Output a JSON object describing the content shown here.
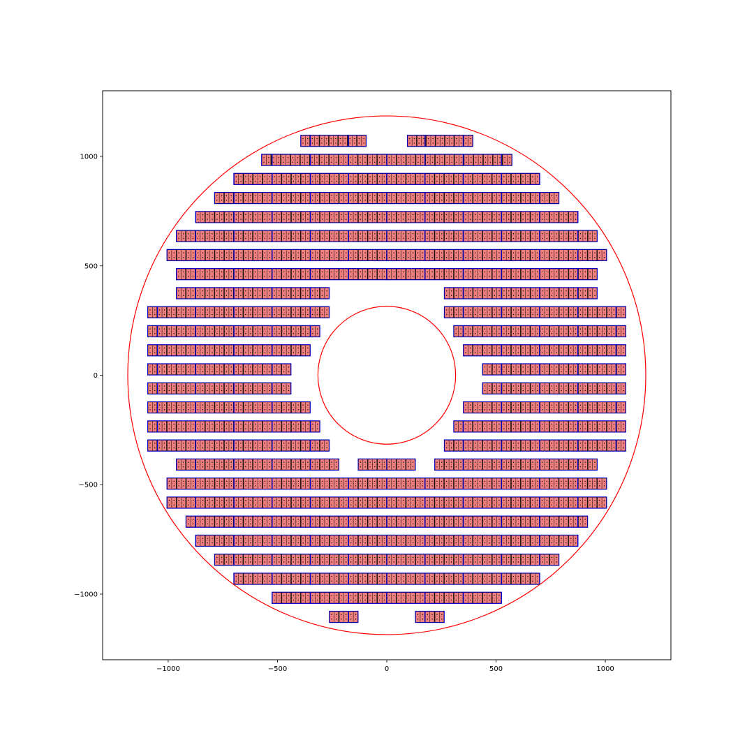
{
  "chart_data": {
    "type": "diagram",
    "title": "",
    "xlabel": "",
    "ylabel": "",
    "xlim": [
      -1300,
      1300
    ],
    "ylim": [
      -1300,
      1300
    ],
    "grid": false,
    "xticks": [
      {
        "value": -1000,
        "label": "−1000"
      },
      {
        "value": -500,
        "label": "−500"
      },
      {
        "value": 0,
        "label": "0"
      },
      {
        "value": 500,
        "label": "500"
      },
      {
        "value": 1000,
        "label": "1000"
      }
    ],
    "yticks": [
      {
        "value": 1000,
        "label": "1000"
      },
      {
        "value": 500,
        "label": "500"
      },
      {
        "value": 0,
        "label": "0"
      },
      {
        "value": -500,
        "label": "−500"
      },
      {
        "value": -1000,
        "label": "−1000"
      }
    ],
    "circles": [
      {
        "name": "outer-boundary",
        "radius": 1185,
        "color": "#ff0000"
      },
      {
        "name": "inner-boundary",
        "radius": 315,
        "color": "#ff0000"
      }
    ],
    "module_width": 43.7,
    "module_height": 52,
    "module_fill": "#f08080",
    "module_edge": "#000000",
    "stave_edge": "#0000cc",
    "rows": [
      {
        "y": 1071,
        "segments": [
          [
            -394,
            -94
          ],
          [
            94,
            394
          ]
        ]
      },
      {
        "y": 984,
        "segments": [
          [
            -573,
            0
          ],
          [
            0,
            573
          ]
        ]
      },
      {
        "y": 897,
        "segments": [
          [
            -700,
            0
          ],
          [
            0,
            700
          ]
        ]
      },
      {
        "y": 810,
        "segments": [
          [
            -788,
            0
          ],
          [
            0,
            788
          ]
        ]
      },
      {
        "y": 723,
        "segments": [
          [
            -875,
            0
          ],
          [
            0,
            875
          ]
        ]
      },
      {
        "y": 636,
        "segments": [
          [
            -963,
            0
          ],
          [
            0,
            963
          ]
        ]
      },
      {
        "y": 549,
        "segments": [
          [
            -1006,
            0
          ],
          [
            0,
            1006
          ]
        ]
      },
      {
        "y": 462,
        "segments": [
          [
            -963,
            0
          ],
          [
            0,
            963
          ]
        ]
      },
      {
        "y": 375,
        "segments": [
          [
            -963,
            -263
          ],
          [
            263,
            963
          ]
        ]
      },
      {
        "y": 288,
        "segments": [
          [
            -1094,
            -263
          ],
          [
            263,
            1094
          ]
        ]
      },
      {
        "y": 201,
        "segments": [
          [
            -1094,
            -306
          ],
          [
            306,
            1094
          ]
        ]
      },
      {
        "y": 114,
        "segments": [
          [
            -1094,
            -350
          ],
          [
            350,
            1094
          ]
        ]
      },
      {
        "y": 27,
        "segments": [
          [
            -1094,
            -438
          ],
          [
            438,
            1094
          ]
        ]
      },
      {
        "y": -60,
        "segments": [
          [
            -1094,
            -438
          ],
          [
            438,
            1094
          ]
        ]
      },
      {
        "y": -147,
        "segments": [
          [
            -1094,
            -350
          ],
          [
            350,
            1094
          ]
        ]
      },
      {
        "y": -234,
        "segments": [
          [
            -1094,
            -306
          ],
          [
            306,
            1094
          ]
        ]
      },
      {
        "y": -321,
        "segments": [
          [
            -1094,
            -263
          ],
          [
            263,
            1094
          ]
        ]
      },
      {
        "y": -408,
        "segments": [
          [
            -963,
            -219
          ],
          [
            -131,
            0
          ],
          [
            0,
            131
          ],
          [
            219,
            963
          ]
        ]
      },
      {
        "y": -495,
        "segments": [
          [
            -1006,
            0
          ],
          [
            0,
            1006
          ]
        ]
      },
      {
        "y": -582,
        "segments": [
          [
            -1006,
            0
          ],
          [
            0,
            1006
          ]
        ]
      },
      {
        "y": -669,
        "segments": [
          [
            -919,
            0
          ],
          [
            0,
            919
          ]
        ]
      },
      {
        "y": -756,
        "segments": [
          [
            -875,
            0
          ],
          [
            0,
            875
          ]
        ]
      },
      {
        "y": -843,
        "segments": [
          [
            -788,
            0
          ],
          [
            0,
            788
          ]
        ]
      },
      {
        "y": -930,
        "segments": [
          [
            -700,
            0
          ],
          [
            0,
            700
          ]
        ]
      },
      {
        "y": -1017,
        "segments": [
          [
            -525,
            0
          ],
          [
            0,
            525
          ]
        ]
      },
      {
        "y": -1104,
        "segments": [
          [
            -263,
            -131
          ],
          [
            131,
            263
          ]
        ]
      }
    ]
  }
}
